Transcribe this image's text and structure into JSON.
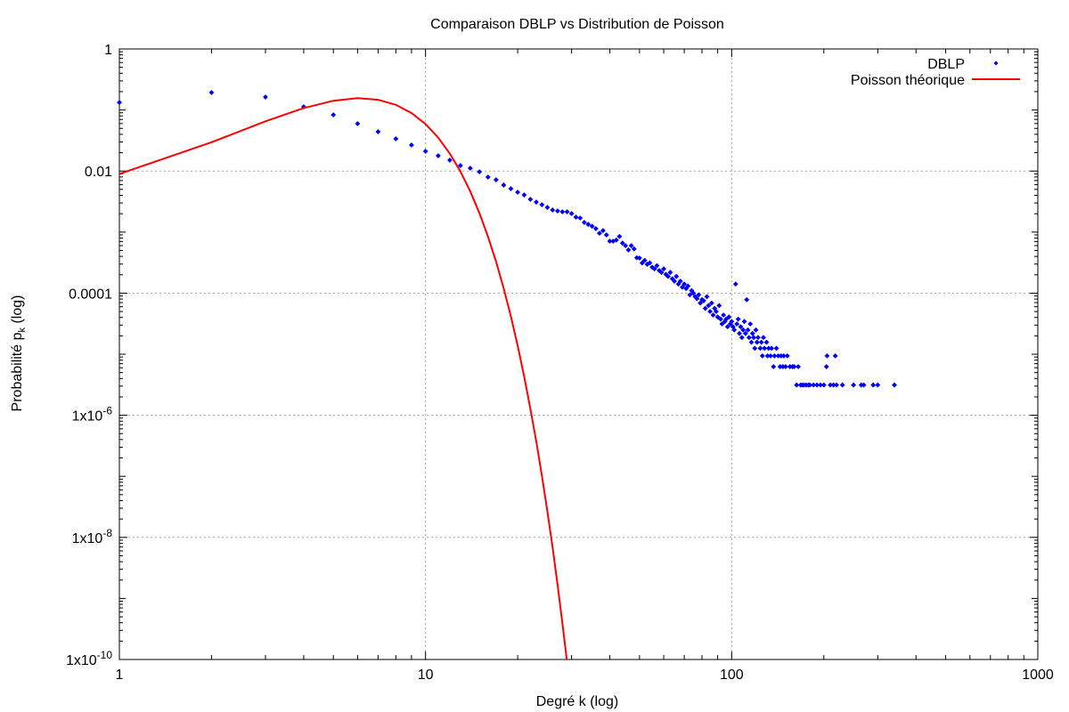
{
  "chart_data": {
    "type": "scatter",
    "title": "Comparaison DBLP vs Distribution de Poisson",
    "xlabel": "Degré k (log)",
    "ylabel": {
      "main": "Probabilité p",
      "sub": "k",
      "suffix": " (log)"
    },
    "xscale": "log",
    "yscale": "log",
    "xlim": [
      1,
      1000
    ],
    "ylim": [
      1e-10,
      1
    ],
    "grid": true,
    "legend_position": "top-right",
    "xticks": [
      1,
      10,
      100,
      1000
    ],
    "xtick_labels": [
      "1",
      "10",
      "100",
      "1000"
    ],
    "yticks": [
      1,
      0.01,
      0.0001,
      1e-06,
      1e-08,
      1e-10
    ],
    "ytick_labels": [
      {
        "base": "1",
        "exp": ""
      },
      {
        "base": "0.01",
        "exp": ""
      },
      {
        "base": "0.0001",
        "exp": ""
      },
      {
        "base": "1x10",
        "exp": "-6"
      },
      {
        "base": "1x10",
        "exp": "-8"
      },
      {
        "base": "1x10",
        "exp": "-10"
      }
    ],
    "series": [
      {
        "name": "DBLP",
        "style": "points",
        "color": "#0000ff",
        "points": [
          [
            1,
            0.133
          ],
          [
            2,
            0.193
          ],
          [
            3,
            0.163
          ],
          [
            4,
            0.113
          ],
          [
            5,
            0.0834
          ],
          [
            6,
            0.0597
          ],
          [
            7,
            0.0441
          ],
          [
            8,
            0.0338
          ],
          [
            9,
            0.0267
          ],
          [
            10,
            0.0211
          ],
          [
            11,
            0.0178
          ],
          [
            12,
            0.0151
          ],
          [
            13,
            0.0123
          ],
          [
            14,
            0.01113
          ],
          [
            15,
            0.00973
          ],
          [
            16,
            0.00796
          ],
          [
            17,
            0.00719
          ],
          [
            18,
            0.00589
          ],
          [
            19,
            0.00514
          ],
          [
            20,
            0.0045
          ],
          [
            21,
            0.00406
          ],
          [
            22,
            0.00344
          ],
          [
            23,
            0.0031
          ],
          [
            24,
            0.00281
          ],
          [
            25,
            0.00254
          ],
          [
            26,
            0.0023
          ],
          [
            27,
            0.00222
          ],
          [
            28,
            0.00215
          ],
          [
            29,
            0.00215
          ],
          [
            30,
            0.00201
          ],
          [
            31,
            0.00176
          ],
          [
            32,
            0.0017
          ],
          [
            33,
            0.00144
          ],
          [
            34,
            0.00134
          ],
          [
            35,
            0.00125
          ],
          [
            36,
            0.00114
          ],
          [
            37,
            0.00096
          ],
          [
            38,
            0.00106
          ],
          [
            39,
            0.0009
          ],
          [
            40,
            0.00071
          ],
          [
            41,
            0.00071
          ],
          [
            42,
            0.00074
          ],
          [
            43,
            0.00085
          ],
          [
            44,
            0.00066
          ],
          [
            45,
            0.0006
          ],
          [
            46,
            0.00051
          ],
          [
            47,
            0.0006
          ],
          [
            48,
            0.00053
          ],
          [
            49,
            0.00038
          ],
          [
            50,
            0.000376
          ],
          [
            51,
            0.000313
          ],
          [
            52,
            0.000344
          ],
          [
            53,
            0.000297
          ],
          [
            54,
            0.000313
          ],
          [
            55,
            0.000266
          ],
          [
            56,
            0.00025
          ],
          [
            57,
            0.000282
          ],
          [
            58,
            0.000235
          ],
          [
            59,
            0.000219
          ],
          [
            60,
            0.00025
          ],
          [
            61,
            0.000203
          ],
          [
            62,
            0.000188
          ],
          [
            63,
            0.000219
          ],
          [
            64,
            0.000172
          ],
          [
            65,
            0.000157
          ],
          [
            66,
            0.000188
          ],
          [
            67,
            0.000141
          ],
          [
            68,
            0.000157
          ],
          [
            69,
            0.000125
          ],
          [
            70,
            0.000141
          ],
          [
            71,
            0.000119
          ],
          [
            72,
            0.000131
          ],
          [
            73,
            9.39e-05
          ],
          [
            74,
            0.00011
          ],
          [
            75,
            0.0001
          ],
          [
            76,
            8.76e-05
          ],
          [
            77,
            8.14e-05
          ],
          [
            78,
            9.39e-05
          ],
          [
            79,
            6.89e-05
          ],
          [
            80,
            7.83e-05
          ],
          [
            81,
            7.51e-05
          ],
          [
            82,
            5.63e-05
          ],
          [
            83,
            8.76e-05
          ],
          [
            84,
            6.26e-05
          ],
          [
            85,
            5.01e-05
          ],
          [
            86,
            6.89e-05
          ],
          [
            87,
            4.38e-05
          ],
          [
            88,
            5.63e-05
          ],
          [
            89,
            5.01e-05
          ],
          [
            90,
            4.07e-05
          ],
          [
            91,
            6.26e-05
          ],
          [
            92,
            3.76e-05
          ],
          [
            93,
            3.13e-05
          ],
          [
            94,
            4.38e-05
          ],
          [
            95,
            3.44e-05
          ],
          [
            96,
            3.76e-05
          ],
          [
            97,
            2.82e-05
          ],
          [
            98,
            4.07e-05
          ],
          [
            99,
            3.13e-05
          ],
          [
            100,
            3.44e-05
          ],
          [
            101,
            2.82e-05
          ],
          [
            102,
            2.5e-05
          ],
          [
            103,
            0.000141
          ],
          [
            104,
            3.13e-05
          ],
          [
            105,
            3.76e-05
          ],
          [
            106,
            2.19e-05
          ],
          [
            107,
            2.82e-05
          ],
          [
            108,
            1.88e-05
          ],
          [
            109,
            2.5e-05
          ],
          [
            110,
            3.44e-05
          ],
          [
            111,
            2.19e-05
          ],
          [
            112,
            7.83e-05
          ],
          [
            113,
            2.5e-05
          ],
          [
            114,
            1.88e-05
          ],
          [
            115,
            3.13e-05
          ],
          [
            116,
            1.57e-05
          ],
          [
            117,
            2.19e-05
          ],
          [
            118,
            1.88e-05
          ],
          [
            119,
            1.25e-05
          ],
          [
            120,
            2.5e-05
          ],
          [
            121,
            1.57e-05
          ],
          [
            122,
            1.88e-05
          ],
          [
            124,
            1.25e-05
          ],
          [
            125,
            1.57e-05
          ],
          [
            126,
            9.39e-06
          ],
          [
            127,
            1.88e-05
          ],
          [
            128,
            1.25e-05
          ],
          [
            130,
            1.57e-05
          ],
          [
            131,
            9.39e-06
          ],
          [
            132,
            1.25e-05
          ],
          [
            134,
            9.39e-06
          ],
          [
            135,
            1.25e-05
          ],
          [
            137,
            6.26e-06
          ],
          [
            138,
            9.39e-06
          ],
          [
            140,
            1.25e-05
          ],
          [
            142,
            9.39e-06
          ],
          [
            144,
            6.26e-06
          ],
          [
            145,
            9.39e-06
          ],
          [
            147,
            6.26e-06
          ],
          [
            148,
            9.39e-06
          ],
          [
            150,
            6.26e-06
          ],
          [
            152,
            9.39e-06
          ],
          [
            155,
            6.26e-06
          ],
          [
            158,
            6.26e-06
          ],
          [
            160,
            6.26e-06
          ],
          [
            163,
            3.13e-06
          ],
          [
            165,
            6.26e-06
          ],
          [
            168,
            3.13e-06
          ],
          [
            170,
            3.13e-06
          ],
          [
            172,
            3.13e-06
          ],
          [
            175,
            3.13e-06
          ],
          [
            178,
            3.13e-06
          ],
          [
            180,
            3.13e-06
          ],
          [
            185,
            3.13e-06
          ],
          [
            190,
            3.13e-06
          ],
          [
            195,
            3.13e-06
          ],
          [
            200,
            3.13e-06
          ],
          [
            204,
            6.26e-06
          ],
          [
            205,
            9.39e-06
          ],
          [
            210,
            3.13e-06
          ],
          [
            215,
            3.13e-06
          ],
          [
            218,
            9.39e-06
          ],
          [
            220,
            3.13e-06
          ],
          [
            230,
            3.13e-06
          ],
          [
            250,
            3.13e-06
          ],
          [
            265,
            3.13e-06
          ],
          [
            270,
            3.13e-06
          ],
          [
            290,
            3.13e-06
          ],
          [
            300,
            3.13e-06
          ],
          [
            340,
            3.13e-06
          ]
        ]
      },
      {
        "name": "Poisson théorique",
        "style": "line",
        "color": "#ff0000",
        "points": [
          [
            1,
            0.008979
          ],
          [
            2,
            0.02963
          ],
          [
            3,
            0.06519
          ],
          [
            4,
            0.10756
          ],
          [
            5,
            0.14198
          ],
          [
            6,
            0.15618
          ],
          [
            7,
            0.14726
          ],
          [
            8,
            0.12149
          ],
          [
            9,
            0.08909
          ],
          [
            10,
            0.0588
          ],
          [
            11,
            0.03528
          ],
          [
            12,
            0.0194
          ],
          [
            13,
            0.009851
          ],
          [
            14,
            0.004644
          ],
          [
            15,
            0.002043
          ],
          [
            16,
            0.000843
          ],
          [
            17,
            0.0003273
          ],
          [
            18,
            0.00012
          ],
          [
            19,
            4.169e-05
          ],
          [
            20,
            1.376e-05
          ],
          [
            21,
            4.324e-06
          ],
          [
            22,
            1.297e-06
          ],
          [
            23,
            3.723e-07
          ],
          [
            24,
            1.024e-07
          ],
          [
            25,
            2.703e-08
          ],
          [
            26,
            6.862e-09
          ],
          [
            27,
            1.677e-09
          ],
          [
            28,
            3.954e-10
          ],
          [
            29,
            9e-11
          ]
        ]
      }
    ]
  }
}
